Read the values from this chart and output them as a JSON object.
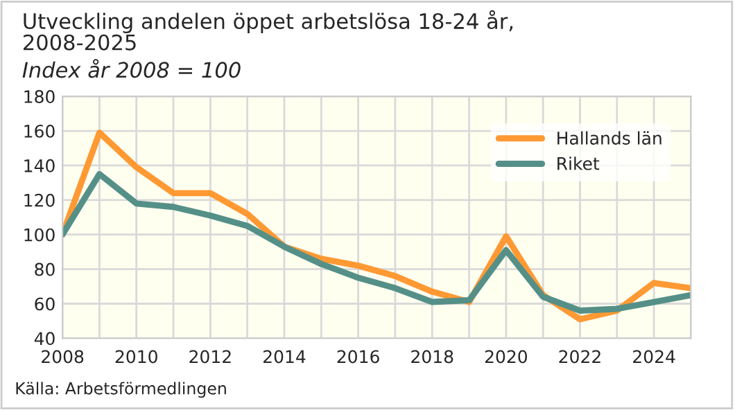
{
  "chart_data": {
    "type": "line",
    "title": "Utveckling andelen öppet arbetslösa 18-24 år,\n2008-2025",
    "subtitle": "Index år 2008 = 100",
    "x": [
      2008,
      2009,
      2010,
      2011,
      2012,
      2013,
      2014,
      2015,
      2016,
      2017,
      2018,
      2019,
      2020,
      2021,
      2022,
      2023,
      2024,
      2025
    ],
    "series": [
      {
        "name": "Hallands län",
        "color": "#ff9933",
        "values": [
          100,
          159,
          139,
          124,
          124,
          112,
          93,
          86,
          82,
          76,
          67,
          61,
          99,
          65,
          51,
          56,
          72,
          69
        ]
      },
      {
        "name": "Riket",
        "color": "#559088",
        "values": [
          100,
          135,
          118,
          116,
          111,
          105,
          93,
          83,
          75,
          69,
          61,
          62,
          91,
          64,
          56,
          57,
          61,
          65
        ]
      }
    ],
    "xlim": [
      2008,
      2025
    ],
    "xticks": [
      2008,
      {
        "value": 2009,
        "label": null
      },
      2010,
      {
        "value": 2011,
        "label": null
      },
      2012,
      {
        "value": 2013,
        "label": null
      },
      2014,
      {
        "value": 2015,
        "label": null
      },
      2016,
      {
        "value": 2017,
        "label": null
      },
      2018,
      {
        "value": 2019,
        "label": null
      },
      2020,
      {
        "value": 2021,
        "label": null
      },
      2022,
      {
        "value": 2023,
        "label": null
      },
      2024,
      {
        "value": 2025,
        "label": null
      }
    ],
    "ylim": [
      40,
      180
    ],
    "yticks": [
      40,
      60,
      80,
      100,
      120,
      140,
      160,
      180
    ],
    "grid": true,
    "legend": "top right",
    "marker": "none",
    "line_style": "solid",
    "annotations": [
      "Källa: Arbetsförmedlingen"
    ]
  }
}
